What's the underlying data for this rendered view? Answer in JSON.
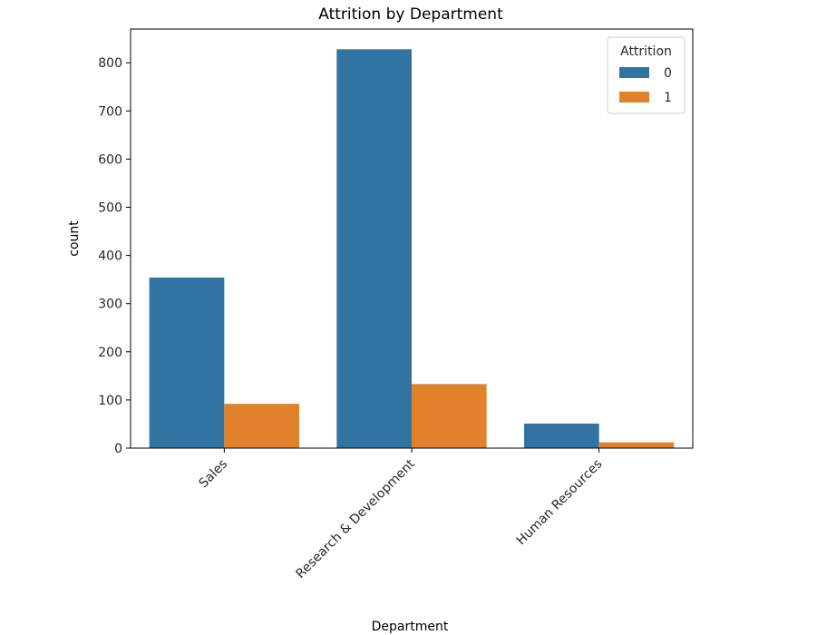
{
  "chart_data": {
    "type": "bar",
    "title": "Attrition by Department",
    "xlabel": "Department",
    "ylabel": "count",
    "categories": [
      "Sales",
      "Research & Development",
      "Human Resources"
    ],
    "series": [
      {
        "name": "0",
        "values": [
          354,
          828,
          51
        ],
        "color": "#3274a1"
      },
      {
        "name": "1",
        "values": [
          92,
          133,
          12
        ],
        "color": "#e1812c"
      }
    ],
    "ylim": [
      0,
      870
    ],
    "yticks": [
      0,
      100,
      200,
      300,
      400,
      500,
      600,
      700,
      800
    ],
    "legend": {
      "title": "Attrition",
      "position": "top-right"
    },
    "grid": false
  }
}
